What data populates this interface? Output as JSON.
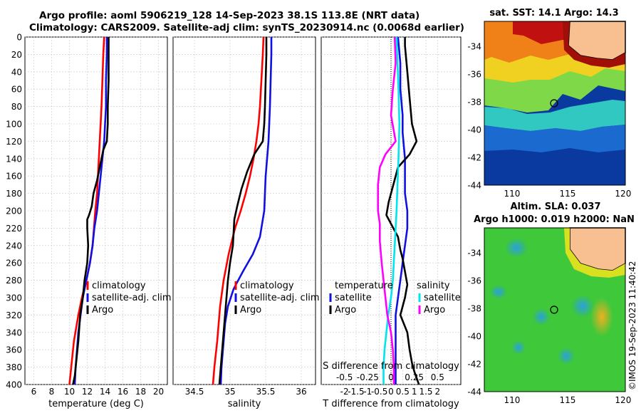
{
  "title": {
    "line1": "Argo profile: aoml 5906219_128 14-Sep-2023 38.1S 113.8E (NRT data)",
    "line2": "Climatology: CARS2009. Satellite-adj clim: synTS_20230914.nc (0.0068d earlier)"
  },
  "credit": "©IMOS 19-Sep-2023 11:40:42",
  "colors": {
    "climatology": "#ff0000",
    "satellite": "#1010e0",
    "argo": "#000000",
    "salinity_satellite": "#00e5ee",
    "salinity_argo": "#ff00ff"
  },
  "chart_data": [
    {
      "type": "line",
      "panel": "temperature",
      "xlabel": "temperature (deg C)",
      "xlim": [
        5,
        21
      ],
      "xticks": [
        6,
        8,
        10,
        12,
        14,
        16,
        18,
        20
      ],
      "ylim": [
        400,
        0
      ],
      "yticks": [
        0,
        20,
        40,
        60,
        80,
        100,
        120,
        140,
        160,
        180,
        200,
        220,
        240,
        260,
        280,
        300,
        320,
        340,
        360,
        380,
        400
      ],
      "legend": [
        "climatology",
        "satellite-adj. clim",
        "Argo"
      ],
      "series": [
        {
          "name": "climatology",
          "color": "#ff0000",
          "x": [
            13.9,
            13.8,
            13.7,
            13.6,
            13.5,
            13.4,
            13.3,
            13.2,
            13.1,
            12.9,
            12.6,
            12.3,
            11.9,
            11.4,
            11.0,
            10.5,
            10.2,
            10.0
          ],
          "depth": [
            0,
            20,
            50,
            80,
            100,
            120,
            140,
            160,
            180,
            200,
            240,
            260,
            280,
            300,
            320,
            350,
            380,
            400
          ]
        },
        {
          "name": "satellite-adj. clim",
          "color": "#1010e0",
          "x": [
            14.2,
            14.2,
            14.1,
            14.1,
            14.0,
            13.9,
            13.7,
            13.5,
            13.3,
            13.1,
            12.8,
            12.6,
            12.3,
            11.9,
            11.5,
            11.0,
            10.7,
            10.6
          ],
          "depth": [
            0,
            20,
            50,
            80,
            100,
            120,
            140,
            160,
            180,
            200,
            220,
            240,
            260,
            280,
            300,
            340,
            380,
            400
          ]
        },
        {
          "name": "Argo",
          "color": "#000000",
          "x": [
            14.4,
            14.4,
            14.4,
            14.3,
            14.3,
            14.2,
            13.8,
            13.4,
            13.1,
            12.7,
            12.5,
            12.2,
            12.0,
            12.0,
            12.1,
            12.0,
            11.7,
            11.5,
            11.2,
            11.0,
            10.8,
            10.6,
            10.4
          ],
          "depth": [
            0,
            20,
            50,
            80,
            100,
            120,
            130,
            150,
            165,
            180,
            195,
            205,
            210,
            220,
            240,
            260,
            280,
            300,
            320,
            350,
            370,
            390,
            400
          ]
        }
      ]
    },
    {
      "type": "line",
      "panel": "salinity",
      "xlabel": "salinity",
      "xlim": [
        34.2,
        36.2
      ],
      "xticks": [
        34.5,
        35,
        35.5,
        36
      ],
      "ylim": [
        400,
        0
      ],
      "legend": [
        "climatology",
        "satellite-adj. clim",
        "Argo"
      ],
      "series": [
        {
          "name": "climatology",
          "color": "#ff0000",
          "x": [
            35.47,
            35.46,
            35.44,
            35.42,
            35.4,
            35.37,
            35.33,
            35.28,
            35.22,
            35.15,
            35.07,
            34.98,
            34.91,
            34.86,
            34.82,
            34.78,
            34.76
          ],
          "depth": [
            0,
            20,
            50,
            80,
            100,
            120,
            140,
            160,
            180,
            200,
            220,
            250,
            280,
            310,
            350,
            380,
            400
          ]
        },
        {
          "name": "satellite-adj. clim",
          "color": "#1010e0",
          "x": [
            35.58,
            35.58,
            35.57,
            35.56,
            35.55,
            35.54,
            35.52,
            35.5,
            35.49,
            35.48,
            35.46,
            35.42,
            35.32,
            35.18,
            35.05,
            34.97,
            34.93,
            34.9,
            34.88,
            34.87
          ],
          "depth": [
            0,
            20,
            50,
            80,
            100,
            120,
            140,
            160,
            180,
            200,
            210,
            230,
            250,
            270,
            290,
            310,
            330,
            360,
            380,
            400
          ]
        },
        {
          "name": "Argo",
          "color": "#000000",
          "x": [
            35.51,
            35.51,
            35.5,
            35.49,
            35.48,
            35.46,
            35.34,
            35.24,
            35.16,
            35.1,
            35.06,
            35.04,
            35.0,
            34.97,
            34.95,
            34.93,
            34.9,
            34.87,
            34.85
          ],
          "depth": [
            0,
            20,
            50,
            80,
            100,
            120,
            135,
            155,
            175,
            195,
            210,
            240,
            260,
            280,
            300,
            320,
            350,
            380,
            400
          ]
        }
      ]
    },
    {
      "type": "line",
      "panel": "difference",
      "xlabel": "T difference from climatology",
      "xlabel_top": "S difference from climatology",
      "xlim": [
        -3,
        3
      ],
      "xticks": [
        -2,
        -1.5,
        -1,
        -0.5,
        0,
        0.5,
        1,
        1.5,
        2
      ],
      "xticklabels": [
        "-2",
        "-1.5",
        "-1",
        "-0.5",
        "0",
        "0.5",
        "1",
        "1.5",
        "2"
      ],
      "sticks": [
        -0.5,
        -0.25,
        0,
        0.25,
        0.5
      ],
      "sticklabels": [
        "-0.5",
        "-0.25",
        "0",
        "0.25",
        "0.5"
      ],
      "ylim": [
        400,
        0
      ],
      "legend": {
        "temperature_header": "temperature",
        "salinity_header": "salinity",
        "entries": [
          "satellite",
          "Argo",
          "satellite",
          "Argo"
        ]
      },
      "series": [
        {
          "name": "T satellite",
          "color": "#1010e0",
          "x": [
            0.3,
            0.4,
            0.4,
            0.5,
            0.5,
            0.6,
            0.6,
            0.6,
            0.7,
            0.7,
            0.6,
            0.5,
            0.4,
            0.3,
            0.2,
            0.2,
            0.2,
            0.2
          ],
          "depth": [
            0,
            30,
            60,
            90,
            110,
            140,
            160,
            180,
            200,
            220,
            240,
            260,
            280,
            300,
            320,
            350,
            380,
            400
          ]
        },
        {
          "name": "T Argo",
          "color": "#000000",
          "x": [
            0.6,
            0.6,
            0.7,
            0.8,
            0.9,
            1.1,
            0.8,
            0.3,
            0.1,
            -0.1,
            -0.2,
            0.0,
            0.3,
            0.4,
            0.5,
            0.6,
            0.7,
            0.6,
            0.4,
            0.7,
            0.8,
            0.9,
            1.0,
            1.2
          ],
          "depth": [
            0,
            10,
            40,
            70,
            100,
            120,
            135,
            150,
            170,
            190,
            205,
            215,
            230,
            245,
            255,
            270,
            285,
            300,
            320,
            340,
            360,
            375,
            385,
            400
          ]
        },
        {
          "name": "S satellite",
          "color": "#00e5ee",
          "x": [
            0.06,
            0.07,
            0.08,
            0.09,
            0.08,
            0.07,
            0.06,
            0.05,
            0.04,
            0.03,
            0.02,
            0.0,
            -0.03,
            -0.05,
            -0.07,
            -0.08,
            -0.08
          ],
          "depth": [
            0,
            30,
            60,
            100,
            140,
            170,
            200,
            220,
            240,
            260,
            280,
            300,
            320,
            340,
            360,
            380,
            400
          ]
        },
        {
          "name": "S Argo",
          "color": "#ff00ff",
          "x": [
            0.04,
            0.05,
            0.02,
            0.0,
            0.05,
            -0.06,
            -0.12,
            -0.14,
            -0.14,
            -0.14,
            -0.12,
            -0.12,
            -0.1,
            -0.08,
            -0.06,
            -0.04,
            0.0,
            0.02,
            0.03,
            0.03
          ],
          "depth": [
            0,
            30,
            60,
            90,
            120,
            135,
            150,
            170,
            190,
            200,
            215,
            235,
            260,
            280,
            300,
            320,
            340,
            360,
            380,
            400
          ]
        }
      ]
    },
    {
      "type": "heatmap",
      "panel": "sst_map",
      "title": "sat. SST: 14.1 Argo: 14.3",
      "xticks": [
        110,
        115,
        120
      ],
      "yticks": [
        -34,
        -36,
        -38,
        -40,
        -42,
        -44
      ],
      "marker": {
        "lon": 113.8,
        "lat": -38.1
      }
    },
    {
      "type": "heatmap",
      "panel": "sla_map",
      "title_line1": "Altim. SLA: 0.037",
      "title_line2": "Argo h1000: 0.019 h2000: NaN",
      "xticks": [
        110,
        115,
        120
      ],
      "yticks": [
        -34,
        -36,
        -38,
        -40,
        -42,
        -44
      ],
      "marker": {
        "lon": 113.8,
        "lat": -38.1
      }
    }
  ]
}
